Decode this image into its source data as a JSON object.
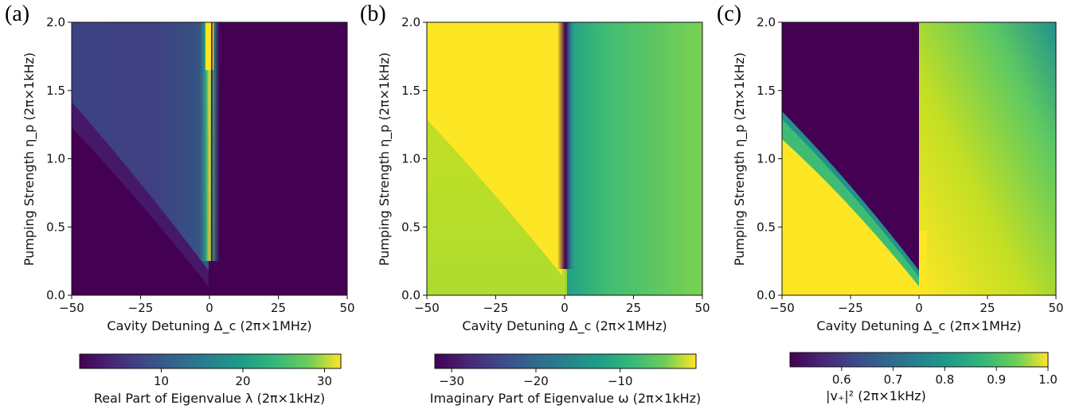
{
  "chart_data": [
    {
      "type": "heatmap",
      "panel_label": "(a)",
      "xlabel": "Cavity Detuning Δ_c (2π×1MHz)",
      "ylabel": "Pumping Strength η_p (2π×1kHz)",
      "xlim": [
        -50,
        50
      ],
      "ylim": [
        0.0,
        2.0
      ],
      "x_ticks": [
        "−50",
        "−25",
        "0",
        "25",
        "50"
      ],
      "y_ticks": [
        "0.0",
        "0.5",
        "1.0",
        "1.5",
        "2.0"
      ],
      "colormap": "viridis",
      "colorbar": {
        "label": "Real Part of Eigenvalue λ (2π×1kHz)",
        "range": [
          0,
          32
        ],
        "ticks": [
          "10",
          "20",
          "30"
        ]
      },
      "description_values": {
        "background": 0,
        "ridge_at_x0_top": 32,
        "left_region_near_x_minus50_top": 5
      }
    },
    {
      "type": "heatmap",
      "panel_label": "(b)",
      "xlabel": "Cavity Detuning Δ_c (2π×1MHz)",
      "ylabel": "Pumping Strength η_p (2π×1kHz)",
      "xlim": [
        -50,
        50
      ],
      "ylim": [
        0.0,
        2.0
      ],
      "x_ticks": [
        "−50",
        "−25",
        "0",
        "25",
        "50"
      ],
      "y_ticks": [
        "0.0",
        "0.5",
        "1.0",
        "1.5",
        "2.0"
      ],
      "colormap": "viridis",
      "colorbar": {
        "label": "Imaginary Part of Eigenvalue ω (2π×1kHz)",
        "range": [
          -32,
          -1
        ],
        "ticks": [
          "−30",
          "−20",
          "−10"
        ]
      },
      "description_values": {
        "left_upper": -1,
        "left_lower": -5,
        "right_far": -8,
        "dip_at_x0_top": -32
      }
    },
    {
      "type": "heatmap",
      "panel_label": "(c)",
      "xlabel": "Cavity Detuning Δ_c (2π×1MHz)",
      "ylabel": "Pumping Strength η_p (2π×1kHz)",
      "xlim": [
        -50,
        50
      ],
      "ylim": [
        0.0,
        2.0
      ],
      "x_ticks": [
        "−50",
        "−25",
        "0",
        "25",
        "50"
      ],
      "y_ticks": [
        "0.0",
        "0.5",
        "1.0",
        "1.5",
        "2.0"
      ],
      "colormap": "viridis",
      "colorbar": {
        "label": "|v₊|² (2π×1kHz)",
        "range": [
          0.5,
          1.0
        ],
        "ticks": [
          "0.6",
          "0.7",
          "0.8",
          "0.9",
          "1.0"
        ]
      },
      "description_values": {
        "left_lower": 1.0,
        "upper_near_x0": 0.5,
        "right_far": 0.95
      }
    }
  ]
}
